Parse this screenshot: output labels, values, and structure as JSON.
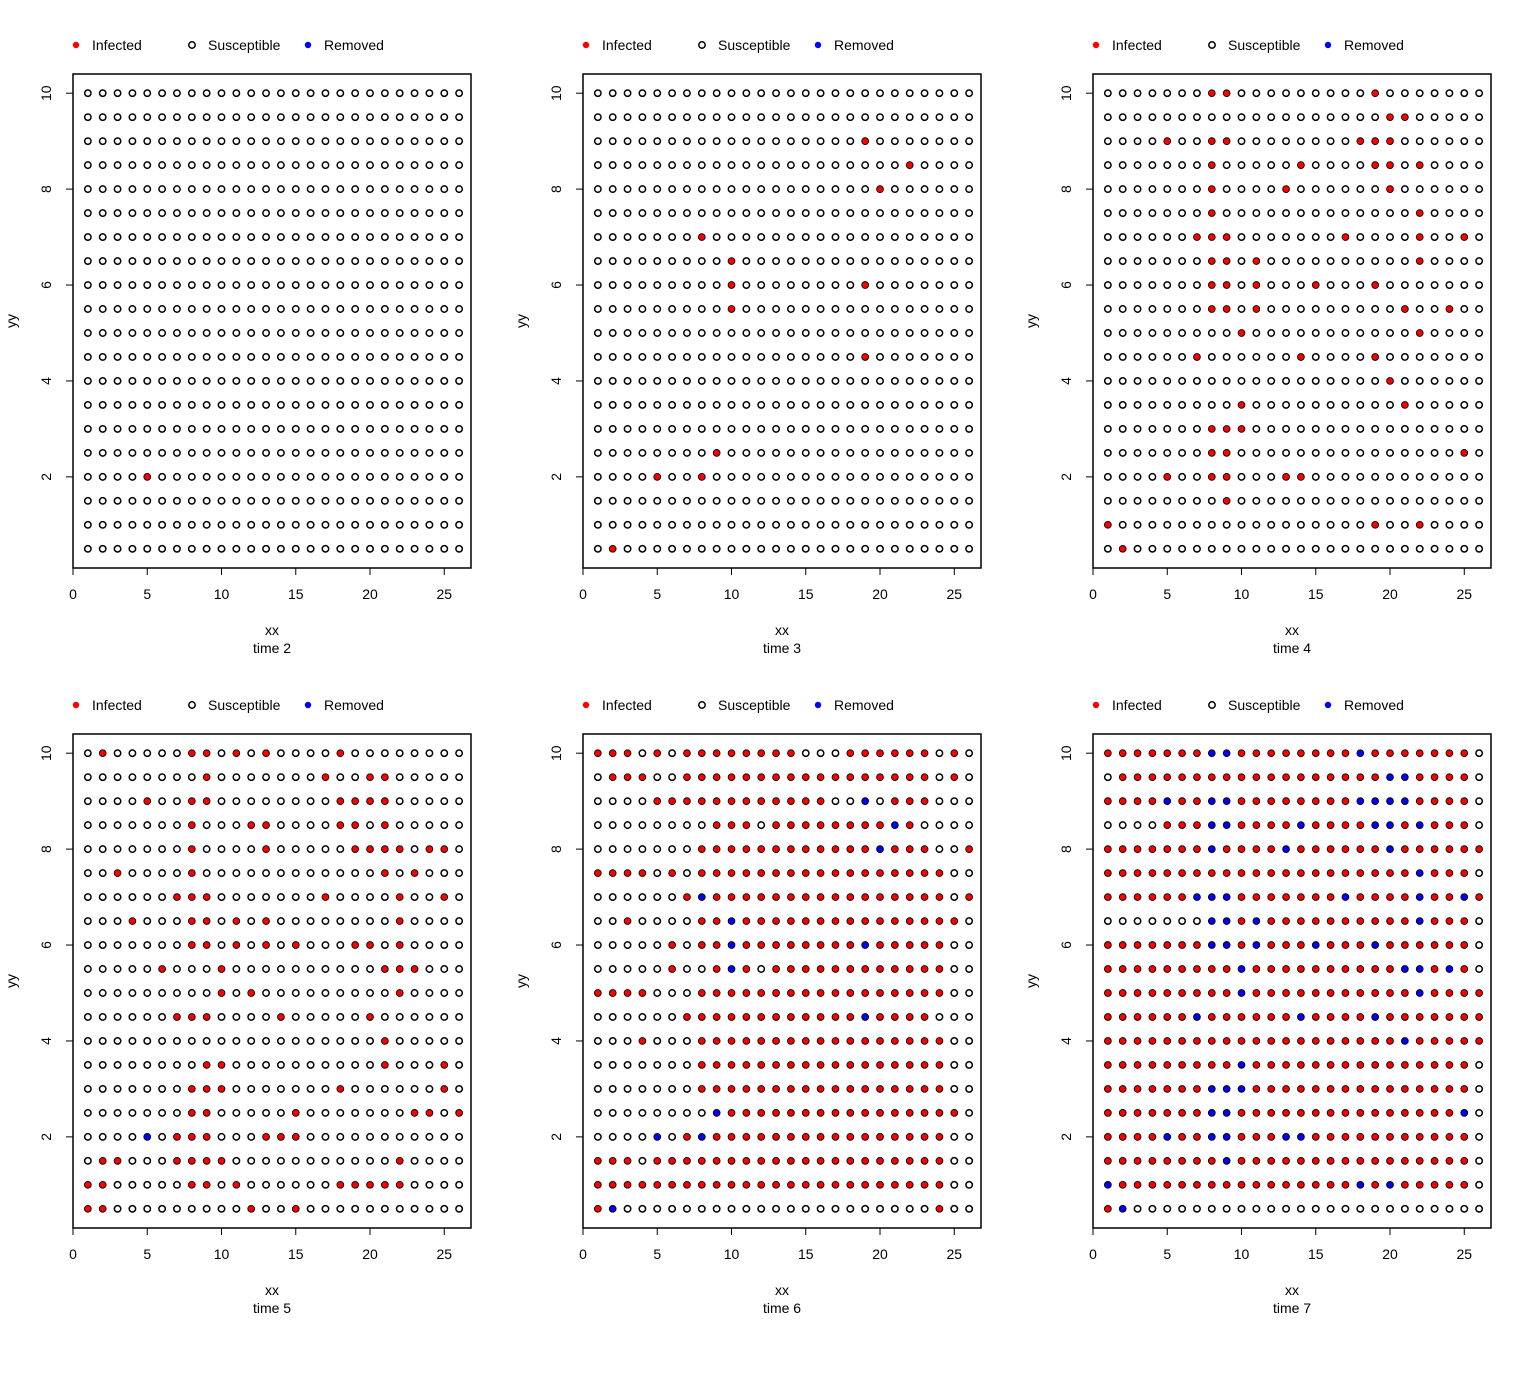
{
  "legend": [
    {
      "label": "Infected",
      "status": "I"
    },
    {
      "label": "Susceptible",
      "status": "S"
    },
    {
      "label": "Removed",
      "status": "R"
    }
  ],
  "colors": {
    "infected": "#ff0000",
    "susceptible": "#000000",
    "removed": "#0000ff"
  },
  "chart_data": [
    {
      "type": "scatter",
      "xlabel": "xx",
      "ylabel": "yy",
      "title": "time  2",
      "xlim": [
        0,
        26.8
      ],
      "ylim": [
        0.1,
        10.4
      ],
      "xticks": [
        0,
        5,
        10,
        15,
        20,
        25
      ],
      "yticks": [
        2,
        4,
        6,
        8,
        10
      ],
      "grid": {
        "cols": 26,
        "rows": 20,
        "x_step": 1,
        "y_step": 0.5
      },
      "rows": [
        "SSSSSSSSSSSSSSSSSSSSSSSSSS",
        "SSSSSSSSSSSSSSSSSSSSSSSSSS",
        "SSSSSSSSSSSSSSSSSSSSSSSSSS",
        "SSSSSSSSSSSSSSSSSSSSSSSSSS",
        "SSSSSSSSSSSSSSSSSSSSSSSSSS",
        "SSSSSSSSSSSSSSSSSSSSSSSSSS",
        "SSSSSSSSSSSSSSSSSSSSSSSSSS",
        "SSSSSSSSSSSSSSSSSSSSSSSSSS",
        "SSSSSSSSSSSSSSSSSSSSSSSSSS",
        "SSSSSSSSSSSSSSSSSSSSSSSSSS",
        "SSSSSSSSSSSSSSSSSSSSSSSSSS",
        "SSSSSSSSSSSSSSSSSSSSSSSSSS",
        "SSSSSSSSSSSSSSSSSSSSSSSSSS",
        "SSSSSSSSSSSSSSSSSSSSSSSSSS",
        "SSSSSSSSSSSSSSSSSSSSSSSSSS",
        "SSSSSSSSSSSSSSSSSSSSSSSSSS",
        "SSSSISSSSSSSSSSSSSSSSSSSSS",
        "SSSSSSSSSSSSSSSSSSSSSSSSSS",
        "SSSSSSSSSSSSSSSSSSSSSSSSSS",
        "SSSSSSSSSSSSSSSSSSSSSSSSSS"
      ]
    },
    {
      "type": "scatter",
      "xlabel": "xx",
      "ylabel": "yy",
      "title": "time  3",
      "xlim": [
        0,
        26.8
      ],
      "ylim": [
        0.1,
        10.4
      ],
      "xticks": [
        0,
        5,
        10,
        15,
        20,
        25
      ],
      "yticks": [
        2,
        4,
        6,
        8,
        10
      ],
      "grid": {
        "cols": 26,
        "rows": 20,
        "x_step": 1,
        "y_step": 0.5
      },
      "rows": [
        "SSSSSSSSSSSSSSSSSSSSSSSSSS",
        "SSSSSSSSSSSSSSSSSSSSSSSSSS",
        "SSSSSSSSSSSSSSSSSSISSSSSSS",
        "SSSSSSSSSSSSSSSSSSSSSISSSS",
        "SSSSSSSSSSSSSSSSSSSISSSSSS",
        "SSSSSSSSSSSSSSSSSSSSSSSSSS",
        "SSSSSSSISSSSSSSSSSSSSSSSSS",
        "SSSSSSSSSISSSSSSSSSSSSSSSS",
        "SSSSSSSSSISSSSSSSSISSSSSSS",
        "SSSSSSSSSISSSSSSSSSSSSSSSS",
        "SSSSSSSSSSSSSSSSSSSSSSSSSS",
        "SSSSSSSSSSSSSSSSSSISSSSSSS",
        "SSSSSSSSSSSSSSSSSSSSSSSSSS",
        "SSSSSSSSSSSSSSSSSSSSSSSSSS",
        "SSSSSSSSSSSSSSSSSSSSSSSSSS",
        "SSSSSSSSISSSSSSSSSSSSSSSSS",
        "SSSSISSISSSSSSSSSSSSSSSSSS",
        "SSSSSSSSSSSSSSSSSSSSSSSSSS",
        "SSSSSSSSSSSSSSSSSSSSSSSSSS",
        "SISSSSSSSSSSSSSSSSSSSSSSSS"
      ]
    },
    {
      "type": "scatter",
      "xlabel": "xx",
      "ylabel": "yy",
      "title": "time  4",
      "xlim": [
        0,
        26.8
      ],
      "ylim": [
        0.1,
        10.4
      ],
      "xticks": [
        0,
        5,
        10,
        15,
        20,
        25
      ],
      "yticks": [
        2,
        4,
        6,
        8,
        10
      ],
      "grid": {
        "cols": 26,
        "rows": 20,
        "x_step": 1,
        "y_step": 0.5
      },
      "rows": [
        "SSSSSSSIISSSSSSSSSISSSSSSS",
        "SSSSSSSSSSSSSSSSSSSIISSSSS",
        "SSSSISSIISSSSSSSSIIISSSSSS",
        "SSSSSSSISSSSSISSSSIISISSSS",
        "SSSSSSSISSSSISSSSSSISSSSSS",
        "SSSSSSSISSSSSSSSSSSSSISSSS",
        "SSSSSSIIISSSSSSSISSSSISSIS",
        "SSSSSSSIISISSSSSSSSSSISSSS",
        "SSSSSSSIISISSSISSSISSSSSSS",
        "SSSSSSSIISISSSSSSSSSISSISS",
        "SSSSSSSSSISSSSSSSSSSSISSSS",
        "SSSSSSISSSSSSISSSSISSSSSSS",
        "SSSSSSSSSSSSSSSSSSSISSSSSS",
        "SSSSSSSSSISSSSSSSSSSISSSSS",
        "SSSSSSSIIISSSSSSSSSSSSSSSS",
        "SSSSSSSIISSSSSSSSSSSSSSSIS",
        "SSSSISSIISSSIISSSSSSSSSSSS",
        "SSSSSSSSISSSSSSSSSSSSSSSSS",
        "ISSSSSSSSSSSSSSSSSISSISSSS",
        "SISSSSSSSSSSSSSSSSSSSSSSSS"
      ]
    },
    {
      "type": "scatter",
      "xlabel": "xx",
      "ylabel": "yy",
      "title": "time  5",
      "xlim": [
        0,
        26.8
      ],
      "ylim": [
        0.1,
        10.4
      ],
      "xticks": [
        0,
        5,
        10,
        15,
        20,
        25
      ],
      "yticks": [
        2,
        4,
        6,
        8,
        10
      ],
      "grid": {
        "cols": 26,
        "rows": 20,
        "x_step": 1,
        "y_step": 0.5
      },
      "rows": [
        "SISSSSSIISISISSSSISSSSSSSS",
        "SSSSSSSSISSSSSSSISSIISSSSS",
        "SSSSISSIISSSSSSSSIIIISSSSS",
        "SSSSSSSISSSIISSSSIISISSSSS",
        "SSSSSSSISSSSISSSSSIIIISIIS",
        "SSISSSSISSSSSSSSSSSSISISSS",
        "SSSSSSIIISSSSSSSISSSSISSIS",
        "SSSISSSIISISISSSSSSSSISSSS",
        "SSSSSSSIISISISISSSIISISSSS",
        "SSSSSISSSISSSSSSSSSSIIISSS",
        "SSSSSSSSSISISSSSSSSSSISSSS",
        "SSSSSSIIISSSSISSSSSISSSSSS",
        "SSSSSSSSSSSSSSSSSSSSISSSSS",
        "SSSSSSSSIISSSSSSSSSSISSSIS",
        "SSSSSSSIIISSSSSSSISSSSSSIS",
        "SSSSSSSIISSSSSISSSSSSSIISI",
        "SSSSRSIIISSSIIISSSSSSSSSSS",
        "SIISSSIIIISSSSSSSSSSSISSSS",
        "IISSSSSIISISSSSSSIIIIISSSS",
        "IISSSSSSSSSISSISSSSSSSSSSS"
      ]
    },
    {
      "type": "scatter",
      "xlabel": "xx",
      "ylabel": "yy",
      "title": "time  6",
      "xlim": [
        0,
        26.8
      ],
      "ylim": [
        0.1,
        10.4
      ],
      "xticks": [
        0,
        5,
        10,
        15,
        20,
        25
      ],
      "yticks": [
        2,
        4,
        6,
        8,
        10
      ],
      "grid": {
        "cols": 26,
        "rows": 20,
        "x_step": 1,
        "y_step": 0.5
      },
      "rows": [
        "IIISISIIIIIIIISSSIIIIIISIS",
        "SIIISSIIIIIIIIIIIIIIIIISIS",
        "SSSSIIIIIIIIIIIISSRSIIISSS",
        "SSSSSSSSIIISIIIIIIIIRISSSS",
        "SSSSSSSIIIIIIIIIIIIRIIISSI",
        "IIIISISIIIIIIIIIIIIIIIIISS",
        "SSSSSSIRIIIIIIIIIIIIIIIISI",
        "SSISSSSIIRIIIIIIIIIIIIIIIS",
        "SSSSSISIIRIIIIIIIIRIIIIISS",
        "SSSSSISSIRISIIIIIIIIIIIISS",
        "IIIISSSIIIIIIIIIIIIIIIIISS",
        "SSSSSSIIIIIIIIIIIIRIIIISSS",
        "SSSISSSIIIIIIIIIIIIIIIIISS",
        "SSSSSSSIIIIIIIIIIIIIIIIISS",
        "SSSSSSSIIIIIIIIIIIIIIIIISS",
        "SSSSSSSSRIIIIIIIIIIIIIIIIS",
        "SSSSRSIRIIIIIIIIIIIIIIIISS",
        "IIISIIIIIIIIIIIIIIIIIIIISS",
        "IIIIIIIIIIIIIIIIIIIIIIIISS",
        "IRSSSSSSSSSSSSSSSSSSSSSISS"
      ]
    },
    {
      "type": "scatter",
      "xlabel": "xx",
      "ylabel": "yy",
      "title": "time  7",
      "xlim": [
        0,
        26.8
      ],
      "ylim": [
        0.1,
        10.4
      ],
      "xticks": [
        0,
        5,
        10,
        15,
        20,
        25
      ],
      "yticks": [
        2,
        4,
        6,
        8,
        10
      ],
      "grid": {
        "cols": 26,
        "rows": 20,
        "x_step": 1,
        "y_step": 0.5
      },
      "rows": [
        "IIIIIIIRRIIIIIIIIRIIIIIIIS",
        "SIIIIIIIIIIIIIIIIIIRRIIIIS",
        "IIIIRIIRRIIIIIIIIRRRRIIIIS",
        "SSSSIIIRRIIIIRIIIIRRIRIIIS",
        "IIIIIIIRIIIIRIIIIIIRIIIIII",
        "IIIIIIIIIIIIIIIIIIIIIRIIIS",
        "IIIIIIRRRIIIIIIIRIIIIRIIRI",
        "SSSSSSSRRIRIIIIIIIIIIRIIIS",
        "IIIIIIIRRIRIIIRIIIRIIIIIIS",
        "IIIIIIIIIRIIIIIIIIIIRRIRIS",
        "IIIIIIIIIRIIIIIIIIIIIRIIII",
        "IIIIIIRIIIIIIRIIIIRIIIIIII",
        "IIIIIIIIIIIIIIIIIIIIRIIIII",
        "IIIIIIIIIRIIIIIIIIIIIIIIIS",
        "IIIIIIIRRRIIIIIIIIIIIIIIIS",
        "IIIIIIIRRIIIIIIIIIIIIIIIRS",
        "IIIIRIIRRIIIRRIIIIIIIIIIIS",
        "IIIIIIIIRIIIIIIIIIIIIIIIIS",
        "RIIIIIIIIIIIIIIIIRIRIIIIIS",
        "IRSSSSSSSSSSSSSSSSSSSSSSSS"
      ]
    }
  ]
}
